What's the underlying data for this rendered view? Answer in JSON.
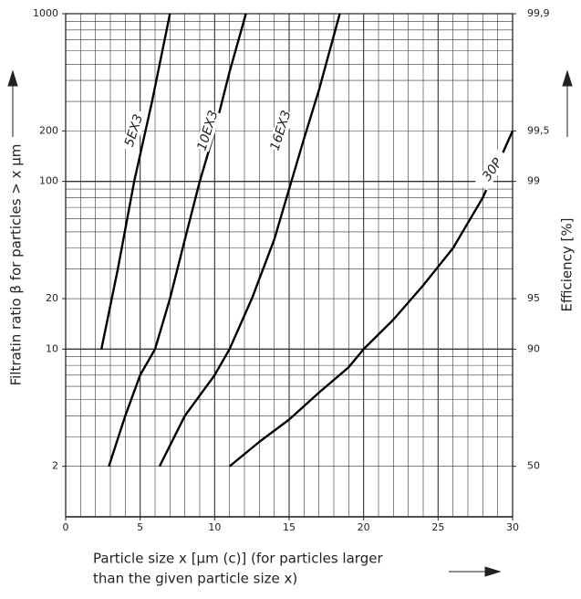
{
  "chart_data": {
    "type": "line",
    "xlabel": [
      "Particle size x [µm (c)] (for particles larger",
      "than the given particle size x)"
    ],
    "ylabel": "Filtratin ratio β for particles > x µm",
    "y2label": "Efficiency  [%]",
    "xlim": [
      0,
      30
    ],
    "xticks": [
      0,
      5,
      10,
      15,
      20,
      25,
      30
    ],
    "ylim": [
      1,
      1000
    ],
    "yticks": [
      2,
      10,
      20,
      100,
      200,
      1000
    ],
    "ylog": true,
    "y2ticks": [
      {
        "value": 99.9,
        "label": "99,9"
      },
      {
        "value": 99.5,
        "label": "99,5"
      },
      99,
      95,
      90,
      50
    ],
    "grid": true,
    "series": [
      {
        "name": "5EX3",
        "color": "#000000",
        "x": [
          2.4,
          3.5,
          4.6,
          5.8,
          7.0
        ],
        "values": [
          10,
          30,
          100,
          300,
          1000
        ]
      },
      {
        "name": "10EX3",
        "color": "#000000",
        "x": [
          2.9,
          4,
          5,
          6,
          7,
          8,
          9,
          10,
          11,
          12.1
        ],
        "values": [
          2,
          4,
          7,
          10,
          20,
          45,
          100,
          200,
          450,
          1000
        ]
      },
      {
        "name": "16EX3",
        "color": "#000000",
        "x": [
          6.3,
          8,
          10,
          11,
          12.5,
          14,
          15,
          16,
          17,
          18.4
        ],
        "values": [
          2,
          4,
          7,
          10,
          20,
          45,
          90,
          180,
          350,
          1000
        ]
      },
      {
        "name": "30P",
        "color": "#000000",
        "x": [
          11,
          13,
          15,
          17,
          19,
          20,
          22,
          24,
          26,
          28,
          30
        ],
        "values": [
          2,
          2.8,
          3.8,
          5.5,
          7.8,
          10,
          15,
          24,
          40,
          80,
          200
        ]
      }
    ]
  }
}
